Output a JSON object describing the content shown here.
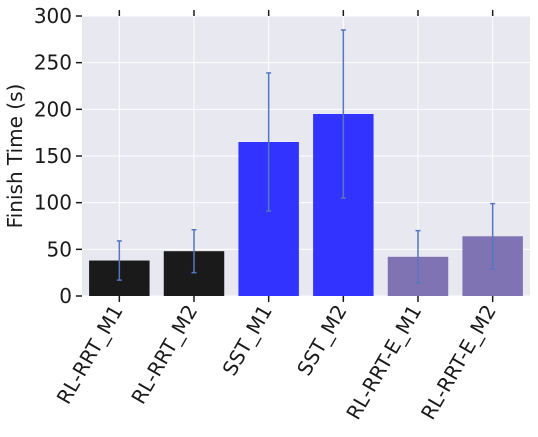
{
  "chart_data": {
    "type": "bar",
    "title": "",
    "xlabel": "",
    "ylabel": "Finish Time (s)",
    "categories": [
      "RL-RRT_M1",
      "RL-RRT_M2",
      "SST_M1",
      "SST_M2",
      "RL-RRT-E_M1",
      "RL-RRT-E_M2"
    ],
    "values": [
      38,
      48,
      165,
      195,
      42,
      64
    ],
    "errors": [
      21,
      23,
      74,
      90,
      28,
      35
    ],
    "colors": [
      "#1a1a1a",
      "#1a1a1a",
      "#3333ff",
      "#3333ff",
      "#8073b4",
      "#8073b4"
    ],
    "error_bar_color": "#5577c0",
    "ylim": [
      0,
      300
    ],
    "yticks": [
      0,
      50,
      100,
      150,
      200,
      250,
      300
    ],
    "grid": true,
    "background": "#e8e8f0"
  }
}
